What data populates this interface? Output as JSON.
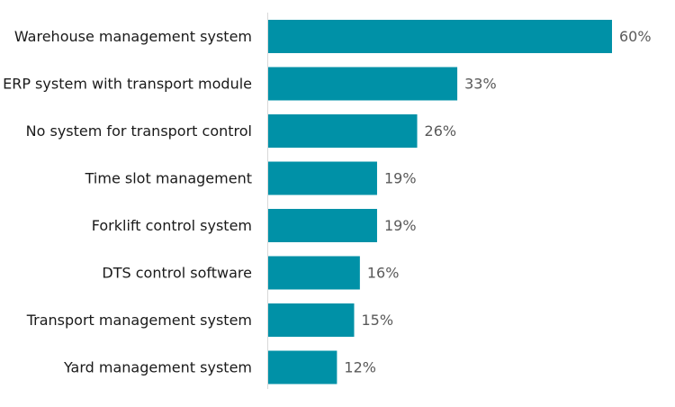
{
  "chart_data": {
    "type": "bar",
    "orientation": "horizontal",
    "categories": [
      "Warehouse management system",
      "ERP system with transport module",
      "No system for transport control",
      "Time slot management",
      "Forklift control system",
      "DTS control software",
      "Transport management system",
      "Yard management system"
    ],
    "values": [
      60,
      33,
      26,
      19,
      19,
      16,
      15,
      12
    ],
    "value_labels": [
      "60%",
      "33%",
      "26%",
      "19%",
      "19%",
      "16%",
      "15%",
      "12%"
    ],
    "unit": "%",
    "title": "",
    "xlabel": "",
    "ylabel": "",
    "xlim": [
      0,
      60
    ],
    "grid": false,
    "legend": "none",
    "bar_color": "#0091a7",
    "axis_color": "#d9d9d9"
  }
}
